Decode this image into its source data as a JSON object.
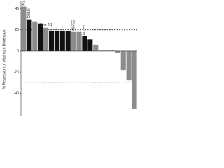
{
  "chart_data": {
    "type": "bar",
    "y_label": "% Regression of Maximum Dimension",
    "values": [
      42,
      30,
      28,
      26,
      22,
      19,
      19,
      19,
      19,
      18,
      18,
      14,
      11,
      6,
      0.5,
      0.5,
      0.5,
      -2,
      -18,
      -28,
      -55
    ],
    "colors": [
      "#8c8c8c",
      "#111111",
      "#8c8c8c",
      "#111111",
      "#8c8c8c",
      "#111111",
      "#111111",
      "#111111",
      "#111111",
      "#8c8c8c",
      "#8c8c8c",
      "#111111",
      "#111111",
      "#8c8c8c",
      "#8c8c8c",
      "#8c8c8c",
      "#8c8c8c",
      "#8c8c8c",
      "#8c8c8c",
      "#8c8c8c",
      "#8c8c8c"
    ],
    "annotations": [
      "N375S",
      "D816I",
      null,
      null,
      "Amp 2.1",
      "*",
      "*",
      "*",
      null,
      "N375S",
      null,
      "N375S",
      null,
      null,
      null,
      null,
      null,
      null,
      null,
      null,
      null
    ],
    "ylim": [
      -61,
      47
    ],
    "yticks": [
      -40,
      -20,
      0,
      20,
      40
    ],
    "reference_lines": [
      20,
      -30
    ]
  }
}
